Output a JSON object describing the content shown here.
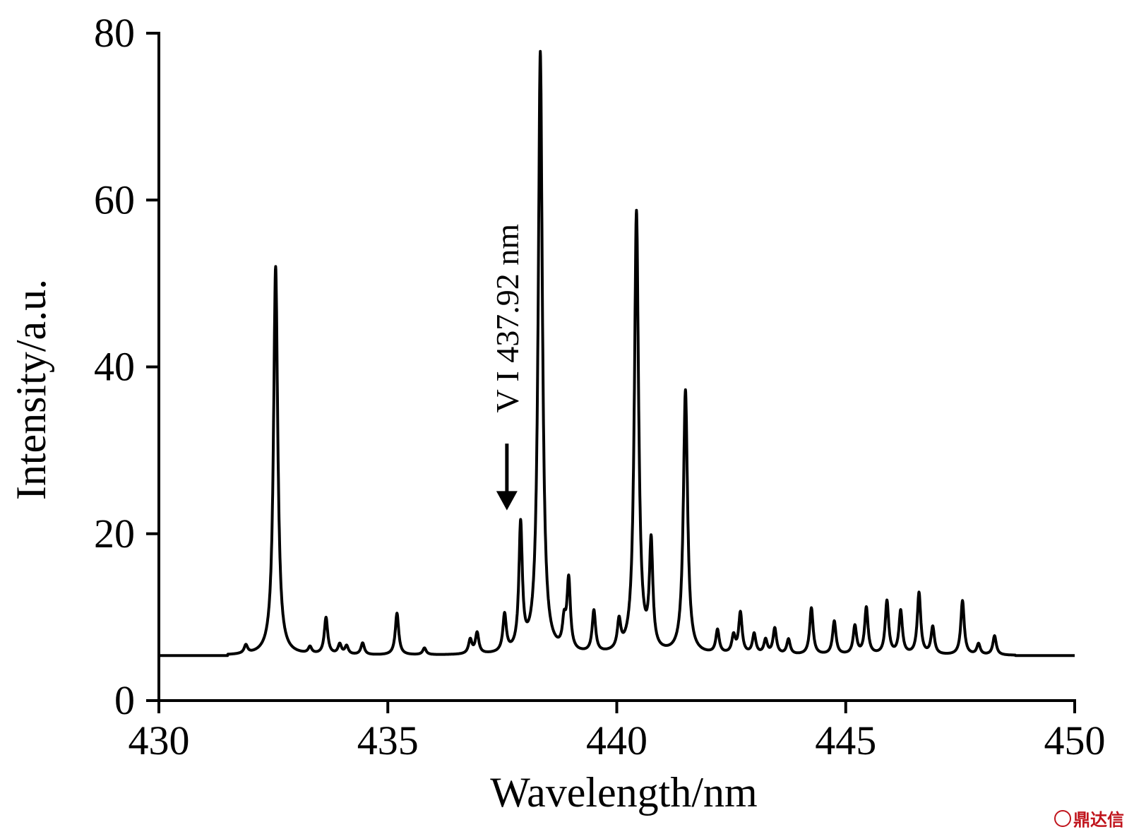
{
  "chart_data": {
    "type": "line",
    "title": "",
    "xlabel": "Wavelength/nm",
    "ylabel": "Intensity/a.u.",
    "xlim": [
      430,
      450
    ],
    "ylim": [
      0,
      80
    ],
    "xticks": [
      430,
      435,
      440,
      445,
      450
    ],
    "yticks": [
      0,
      20,
      40,
      60,
      80
    ],
    "grid": false,
    "legend": "none",
    "line_color": "#000000",
    "baseline": 5.4,
    "series": [
      {
        "peaks": [
          {
            "x": 431.9,
            "y": 6.4
          },
          {
            "x": 432.55,
            "y": 52.0
          },
          {
            "x": 433.3,
            "y": 6.2
          },
          {
            "x": 433.65,
            "y": 9.8
          },
          {
            "x": 433.95,
            "y": 6.6
          },
          {
            "x": 434.1,
            "y": 6.4
          },
          {
            "x": 434.45,
            "y": 6.8
          },
          {
            "x": 435.2,
            "y": 10.4
          },
          {
            "x": 435.8,
            "y": 6.2
          },
          {
            "x": 436.8,
            "y": 7.1
          },
          {
            "x": 436.95,
            "y": 7.9
          },
          {
            "x": 437.55,
            "y": 9.9
          },
          {
            "x": 437.9,
            "y": 20.4
          },
          {
            "x": 438.33,
            "y": 77.5
          },
          {
            "x": 438.85,
            "y": 8.5
          },
          {
            "x": 438.95,
            "y": 13.8
          },
          {
            "x": 439.5,
            "y": 10.4
          },
          {
            "x": 440.05,
            "y": 8.8
          },
          {
            "x": 440.43,
            "y": 58.3
          },
          {
            "x": 440.75,
            "y": 18.1
          },
          {
            "x": 441.5,
            "y": 37.0
          },
          {
            "x": 442.2,
            "y": 8.2
          },
          {
            "x": 442.55,
            "y": 7.5
          },
          {
            "x": 442.7,
            "y": 10.3
          },
          {
            "x": 443.0,
            "y": 7.8
          },
          {
            "x": 443.25,
            "y": 7.1
          },
          {
            "x": 443.45,
            "y": 8.5
          },
          {
            "x": 443.75,
            "y": 7.2
          },
          {
            "x": 444.25,
            "y": 11.0
          },
          {
            "x": 444.75,
            "y": 9.4
          },
          {
            "x": 445.2,
            "y": 8.8
          },
          {
            "x": 445.45,
            "y": 11.0
          },
          {
            "x": 445.9,
            "y": 11.8
          },
          {
            "x": 446.2,
            "y": 10.6
          },
          {
            "x": 446.6,
            "y": 12.8
          },
          {
            "x": 446.9,
            "y": 8.7
          },
          {
            "x": 447.55,
            "y": 11.9
          },
          {
            "x": 447.9,
            "y": 6.7
          },
          {
            "x": 448.25,
            "y": 7.7
          }
        ]
      }
    ],
    "annotations": [
      {
        "text": "V I 437.92 nm",
        "x": 437.6,
        "y": 21.5,
        "arrow": "down"
      }
    ]
  },
  "watermark": {
    "text": "鼎达信",
    "color": "#c0141c"
  }
}
